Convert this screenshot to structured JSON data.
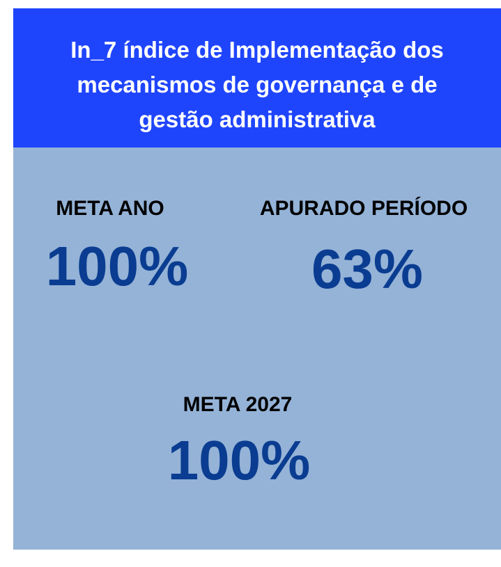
{
  "header": {
    "title_lines": [
      "In_7 índice de Implementação dos",
      "mecanismos de governança e de",
      "gestão administrativa"
    ]
  },
  "metrics": [
    {
      "label": "META ANO",
      "value": "100%"
    },
    {
      "label": "APURADO PERÍODO",
      "value": "63%"
    },
    {
      "label": "META 2027",
      "value": "100%"
    }
  ]
}
